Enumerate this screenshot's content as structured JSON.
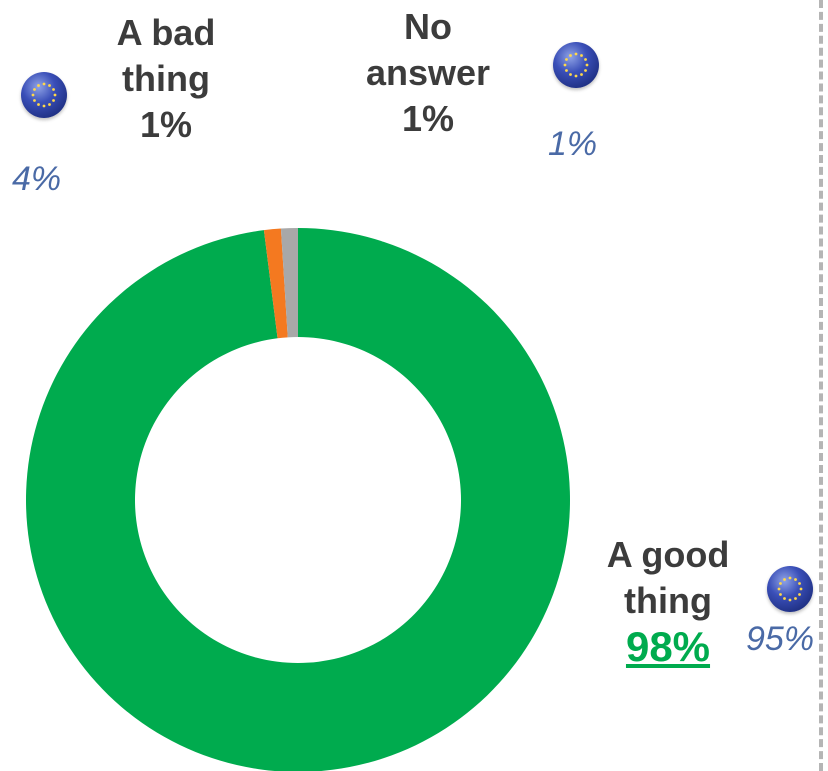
{
  "chart_data": {
    "type": "pie",
    "categories": [
      "A good thing",
      "A bad thing",
      "No answer"
    ],
    "values": [
      98,
      1,
      1
    ],
    "colors": [
      "#00ab4e",
      "#f47920",
      "#a8a8a8"
    ],
    "donut": true
  },
  "labels": {
    "bad": {
      "line1": "A bad",
      "line2": "thing",
      "pct": "1%"
    },
    "noanswer": {
      "line1": "No",
      "line2": "answer",
      "pct": "1%"
    },
    "good": {
      "line1": "A good",
      "line2": "thing",
      "pct": "98%"
    }
  },
  "eu_averages": {
    "bad": "4%",
    "noanswer": "1%",
    "good": "95%"
  },
  "icons": {
    "eu": "eu-flag-icon"
  }
}
